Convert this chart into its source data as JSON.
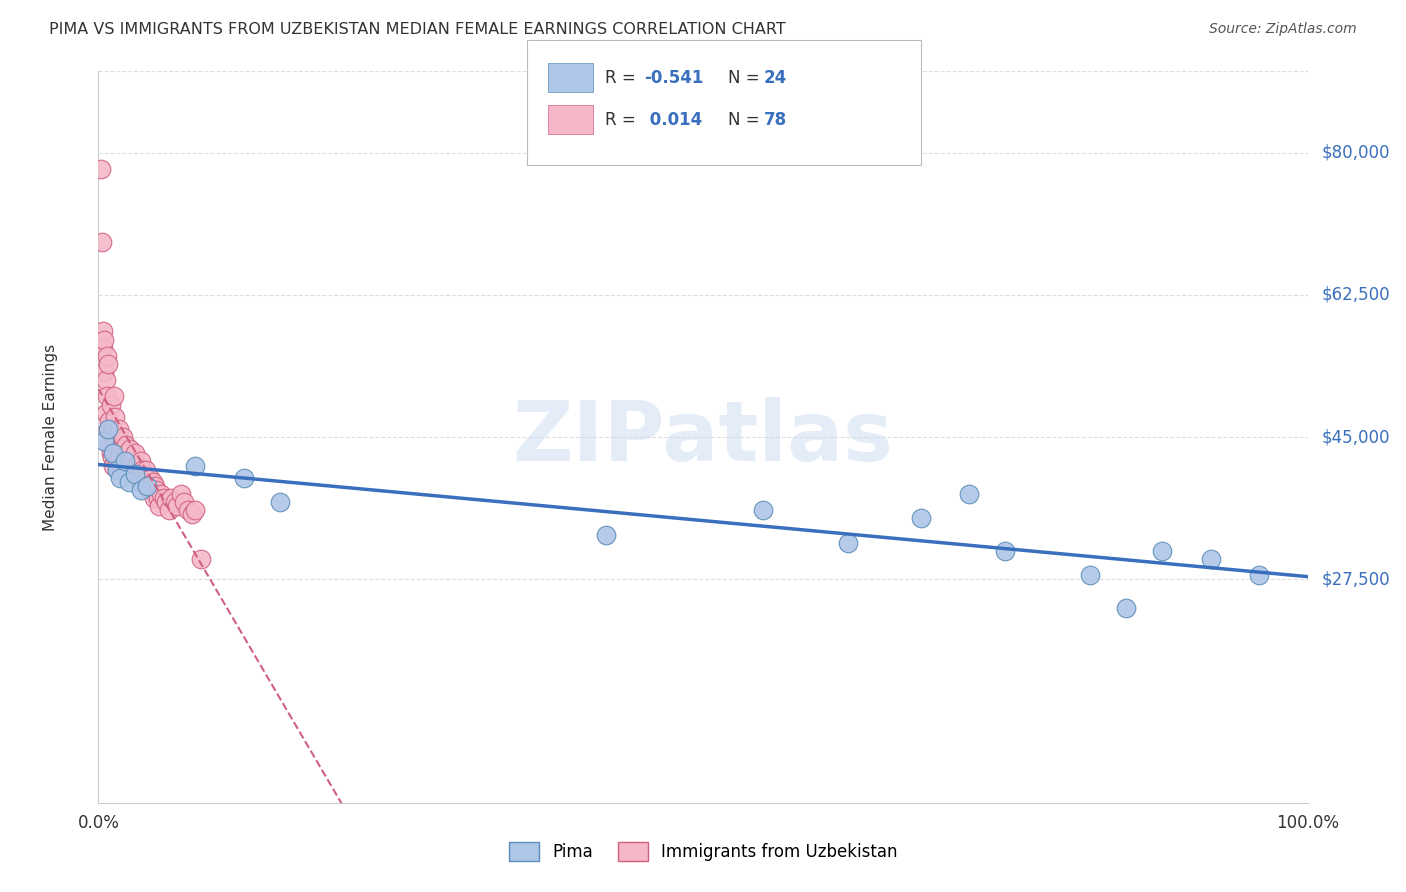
{
  "title": "PIMA VS IMMIGRANTS FROM UZBEKISTAN MEDIAN FEMALE EARNINGS CORRELATION CHART",
  "source": "Source: ZipAtlas.com",
  "ylabel": "Median Female Earnings",
  "xlim": [
    0,
    1.0
  ],
  "ylim": [
    0,
    90000
  ],
  "yticks": [
    27500,
    45000,
    62500,
    80000
  ],
  "ytick_labels": [
    "$27,500",
    "$45,000",
    "$62,500",
    "$80,000"
  ],
  "xtick_labels": [
    "0.0%",
    "100.0%"
  ],
  "background_color": "#ffffff",
  "grid_color": "#dddddd",
  "watermark": "ZIPatlas",
  "series": [
    {
      "name": "Pima",
      "color": "#aec6e8",
      "border_color": "#5b8db8",
      "R": -0.541,
      "N": 24,
      "line_color": "#3a6fbd",
      "x": [
        0.005,
        0.008,
        0.012,
        0.015,
        0.018,
        0.022,
        0.025,
        0.03,
        0.035,
        0.04,
        0.08,
        0.12,
        0.15,
        0.42,
        0.55,
        0.62,
        0.68,
        0.72,
        0.75,
        0.82,
        0.85,
        0.88,
        0.92,
        0.96
      ],
      "y": [
        44500,
        46000,
        43000,
        41000,
        40000,
        42000,
        39500,
        40500,
        38500,
        39000,
        41500,
        40000,
        37000,
        33000,
        36000,
        32000,
        35000,
        38000,
        31000,
        28000,
        24000,
        31000,
        30000,
        28000
      ]
    },
    {
      "name": "Immigrants from Uzbekistan",
      "color": "#f5b8c8",
      "border_color": "#d06080",
      "R": 0.014,
      "N": 78,
      "line_color": "#d06080",
      "x": [
        0.002,
        0.003,
        0.004,
        0.004,
        0.005,
        0.005,
        0.006,
        0.006,
        0.007,
        0.007,
        0.008,
        0.008,
        0.009,
        0.009,
        0.01,
        0.01,
        0.011,
        0.011,
        0.012,
        0.012,
        0.013,
        0.013,
        0.014,
        0.014,
        0.015,
        0.015,
        0.016,
        0.016,
        0.017,
        0.018,
        0.018,
        0.019,
        0.02,
        0.02,
        0.021,
        0.022,
        0.023,
        0.024,
        0.025,
        0.026,
        0.026,
        0.027,
        0.028,
        0.029,
        0.03,
        0.031,
        0.032,
        0.033,
        0.034,
        0.035,
        0.036,
        0.037,
        0.038,
        0.039,
        0.04,
        0.041,
        0.042,
        0.043,
        0.044,
        0.045,
        0.046,
        0.047,
        0.048,
        0.049,
        0.05,
        0.052,
        0.054,
        0.056,
        0.058,
        0.06,
        0.063,
        0.065,
        0.068,
        0.071,
        0.074,
        0.077,
        0.08,
        0.085
      ],
      "y": [
        78000,
        69000,
        58000,
        56000,
        57000,
        53000,
        52000,
        48000,
        55000,
        50000,
        54000,
        46000,
        44000,
        47000,
        49000,
        43000,
        45500,
        42500,
        46000,
        41500,
        50000,
        44000,
        47500,
        43000,
        44500,
        42000,
        43500,
        41000,
        46000,
        43000,
        42500,
        41500,
        44000,
        45000,
        43500,
        42500,
        44000,
        43000,
        42500,
        43500,
        41000,
        42000,
        41500,
        40500,
        43000,
        41500,
        41500,
        40000,
        39500,
        42000,
        41000,
        40500,
        39500,
        41000,
        40000,
        39000,
        38500,
        40000,
        38500,
        39500,
        37500,
        39000,
        38500,
        37500,
        36500,
        38000,
        37500,
        37000,
        36000,
        37500,
        37000,
        36500,
        38000,
        37000,
        36000,
        35500,
        36000,
        30000
      ]
    }
  ]
}
